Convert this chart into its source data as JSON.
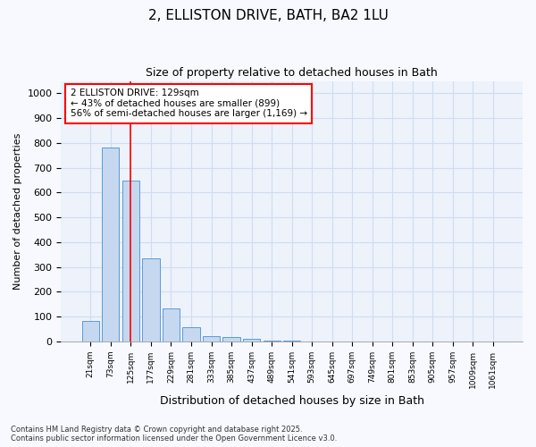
{
  "title1": "2, ELLISTON DRIVE, BATH, BA2 1LU",
  "title2": "Size of property relative to detached houses in Bath",
  "xlabel": "Distribution of detached houses by size in Bath",
  "ylabel": "Number of detached properties",
  "bar_labels": [
    "21sqm",
    "73sqm",
    "125sqm",
    "177sqm",
    "229sqm",
    "281sqm",
    "333sqm",
    "385sqm",
    "437sqm",
    "489sqm",
    "541sqm",
    "593sqm",
    "645sqm",
    "697sqm",
    "749sqm",
    "801sqm",
    "853sqm",
    "905sqm",
    "957sqm",
    "1009sqm",
    "1061sqm"
  ],
  "bar_heights": [
    82,
    782,
    648,
    336,
    133,
    57,
    22,
    18,
    9,
    4,
    2,
    1,
    1,
    0,
    0,
    0,
    0,
    0,
    0,
    0,
    0
  ],
  "bar_color": "#c5d8f0",
  "bar_edge_color": "#5b9bd5",
  "background_color": "#edf2fb",
  "grid_color": "#d0ddf0",
  "red_line_x": 2,
  "annotation_line1": "2 ELLISTON DRIVE: 129sqm",
  "annotation_line2": "← 43% of detached houses are smaller (899)",
  "annotation_line3": "56% of semi-detached houses are larger (1,169) →",
  "ylim": [
    0,
    1050
  ],
  "yticks": [
    0,
    100,
    200,
    300,
    400,
    500,
    600,
    700,
    800,
    900,
    1000
  ],
  "footer_line1": "Contains HM Land Registry data © Crown copyright and database right 2025.",
  "footer_line2": "Contains public sector information licensed under the Open Government Licence v3.0.",
  "fig_bg": "#f7f9fe"
}
